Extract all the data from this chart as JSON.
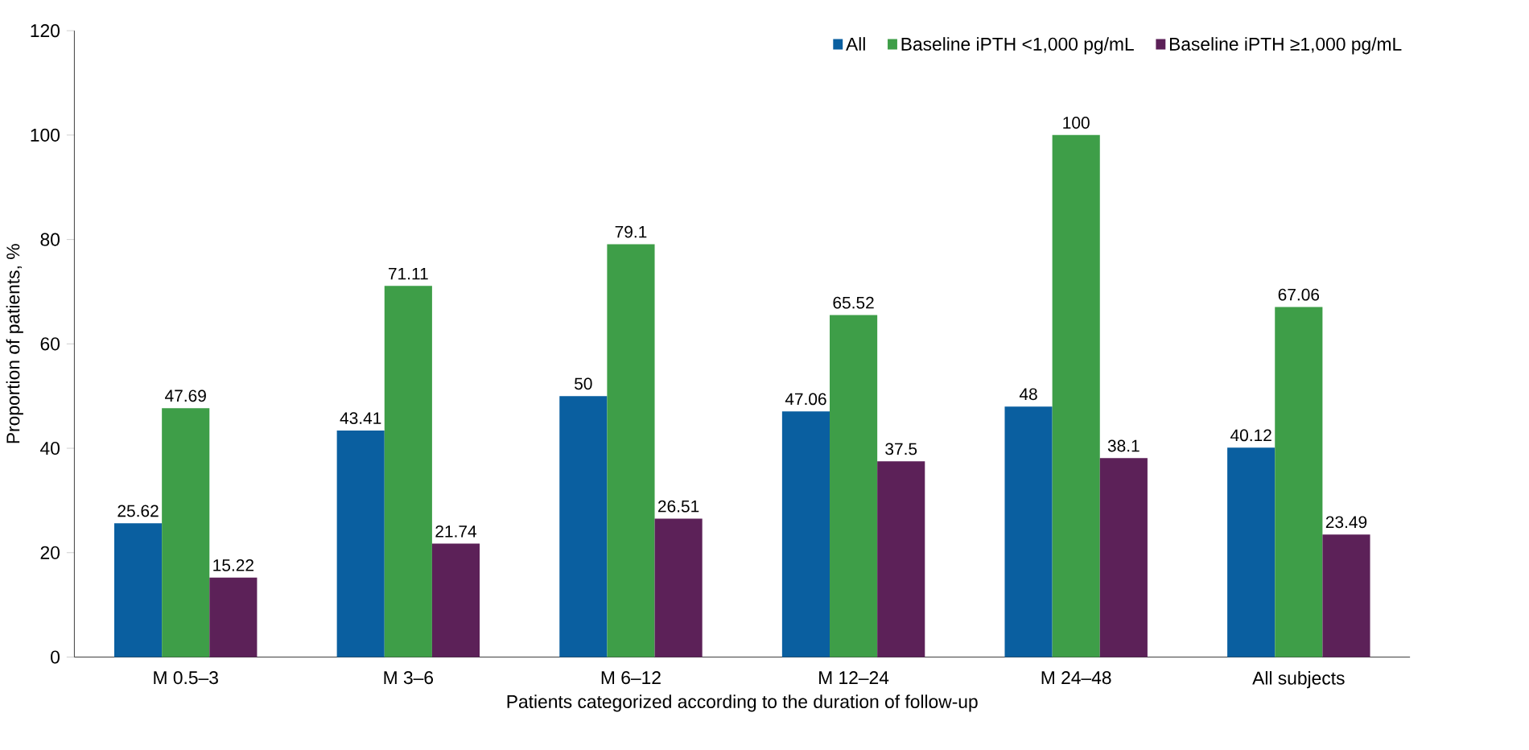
{
  "chart_data": {
    "type": "bar",
    "xlabel": "Patients categorized according to the duration of follow-up",
    "ylabel": "Proportion of patients, %",
    "categories": [
      "M 0.5–3",
      "M 3–6",
      "M 6–12",
      "M 12–24",
      "M 24–48",
      "All subjects"
    ],
    "series": [
      {
        "name": "All",
        "color": "#0a5fa0",
        "values": [
          25.62,
          43.41,
          50,
          47.06,
          48,
          40.12
        ]
      },
      {
        "name": "Baseline iPTH <1,000 pg/mL",
        "color": "#3e9e48",
        "values": [
          47.69,
          71.11,
          79.1,
          65.52,
          100,
          67.06
        ]
      },
      {
        "name": "Baseline iPTH ≥1,000 pg/mL",
        "color": "#5c2158",
        "values": [
          15.22,
          21.74,
          26.51,
          37.5,
          38.1,
          23.49
        ]
      }
    ],
    "ylim": [
      0,
      120
    ],
    "yticks": [
      0,
      20,
      40,
      60,
      80,
      100,
      120
    ],
    "data_labels": true,
    "legend": "top right",
    "grid": false
  }
}
